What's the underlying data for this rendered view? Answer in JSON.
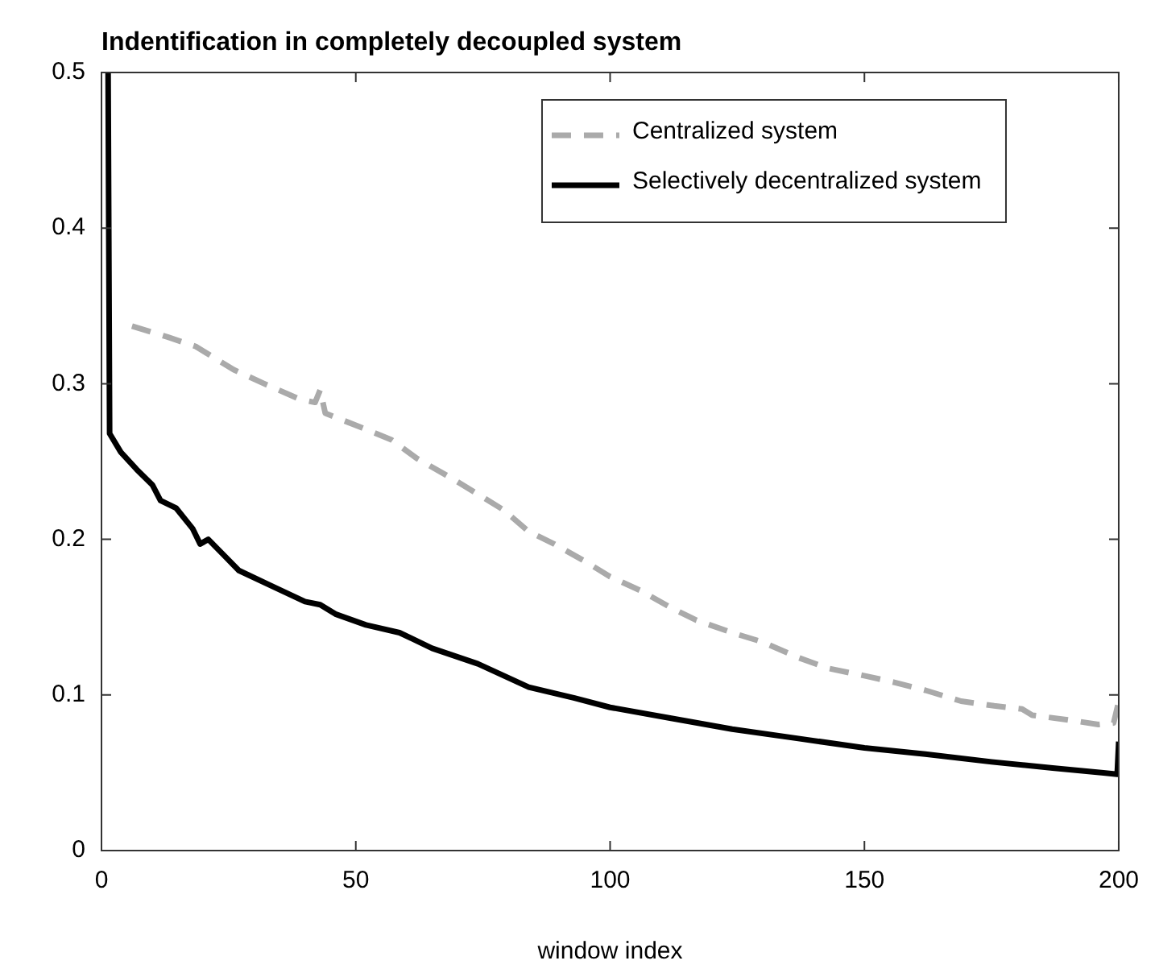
{
  "chart_data": {
    "type": "line",
    "title": "Indentification in completely decoupled system",
    "xlabel": "window index",
    "xlim": [
      0,
      200
    ],
    "xticks": [
      0,
      50,
      100,
      150,
      200
    ],
    "ylim": [
      0,
      0.5
    ],
    "yticks": [
      0,
      0.1,
      0.2,
      0.3,
      0.4,
      0.5
    ],
    "grid": false,
    "legend": "top right",
    "marker": "none",
    "series": [
      {
        "name": "Centralized system",
        "color": "#aaaaaa",
        "line_style": "dashed",
        "x": [
          6,
          13,
          18.5,
          22,
          26,
          32,
          39,
          42,
          43,
          44,
          51,
          57,
          62,
          69,
          74,
          79,
          84,
          89,
          95,
          100,
          106,
          112,
          117,
          124,
          130,
          137,
          143,
          150.5,
          156,
          162,
          169,
          175.5,
          181,
          183,
          190,
          196,
          199,
          200
        ],
        "values": [
          0.337,
          0.33,
          0.324,
          0.317,
          0.309,
          0.3,
          0.29,
          0.288,
          0.296,
          0.281,
          0.272,
          0.264,
          0.252,
          0.239,
          0.229,
          0.219,
          0.205,
          0.197,
          0.186,
          0.176,
          0.167,
          0.156,
          0.148,
          0.14,
          0.134,
          0.124,
          0.117,
          0.112,
          0.108,
          0.103,
          0.096,
          0.093,
          0.091,
          0.087,
          0.084,
          0.081,
          0.082,
          0.096
        ]
      },
      {
        "name": "Selectively decentralized system",
        "color": "#000000",
        "line_style": "solid",
        "x": [
          1.3,
          1.6,
          3.8,
          6.9,
          10,
          11.6,
          14.7,
          17.9,
          19.4,
          21,
          24,
          27,
          33.5,
          40,
          43,
          46,
          52,
          58.6,
          65,
          74,
          84,
          93,
          100,
          112,
          124,
          137,
          150,
          162,
          175,
          187,
          197,
          199.7,
          200
        ],
        "values": [
          0.5,
          0.268,
          0.256,
          0.245,
          0.235,
          0.225,
          0.22,
          0.207,
          0.197,
          0.2,
          0.19,
          0.18,
          0.17,
          0.16,
          0.158,
          0.152,
          0.145,
          0.14,
          0.13,
          0.12,
          0.105,
          0.098,
          0.092,
          0.085,
          0.078,
          0.072,
          0.066,
          0.062,
          0.057,
          0.053,
          0.05,
          0.049,
          0.07
        ]
      }
    ]
  }
}
